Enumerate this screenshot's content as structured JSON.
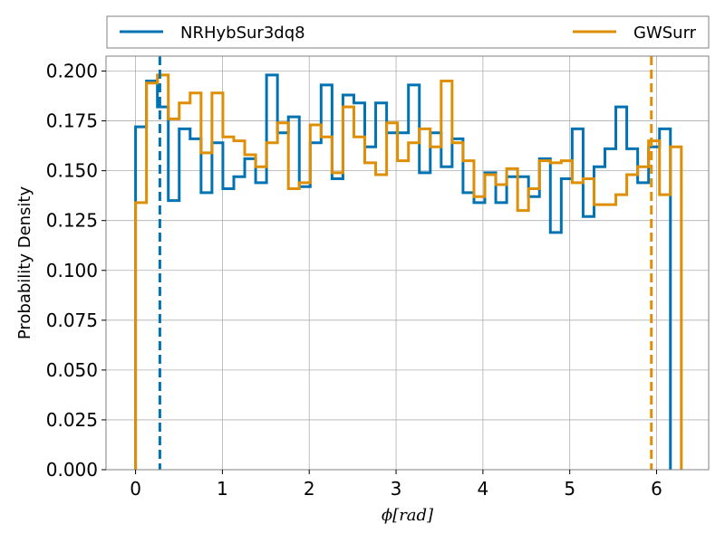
{
  "chart_data": {
    "type": "histogram",
    "xlabel": "ϕ[rad]",
    "ylabel": "Probability Density",
    "xlim": [
      -0.34,
      6.6
    ],
    "ylim": [
      0,
      0.2075
    ],
    "x_ticks": [
      0,
      1,
      2,
      3,
      4,
      5,
      6
    ],
    "y_ticks": [
      "0.000",
      "0.025",
      "0.050",
      "0.075",
      "0.100",
      "0.125",
      "0.150",
      "0.175",
      "0.200"
    ],
    "grid": true,
    "legend_placement": "top (above plot)",
    "bin_width": 0.1257,
    "series": [
      {
        "name": "NRHybSur3dq8",
        "color": "#0173b2",
        "values": [
          0.172,
          0.195,
          0.182,
          0.135,
          0.171,
          0.166,
          0.139,
          0.164,
          0.141,
          0.147,
          0.156,
          0.144,
          0.198,
          0.169,
          0.177,
          0.142,
          0.164,
          0.193,
          0.146,
          0.188,
          0.184,
          0.162,
          0.184,
          0.169,
          0.169,
          0.193,
          0.149,
          0.169,
          0.152,
          0.166,
          0.139,
          0.134,
          0.149,
          0.134,
          0.147,
          0.147,
          0.137,
          0.156,
          0.119,
          0.146,
          0.171,
          0.127,
          0.152,
          0.161,
          0.182,
          0.161,
          0.144,
          0.162,
          0.171
        ],
        "vline": 0.28
      },
      {
        "name": "GWSurr",
        "color": "#de8f05",
        "values": [
          0.134,
          0.194,
          0.198,
          0.176,
          0.184,
          0.189,
          0.159,
          0.189,
          0.167,
          0.165,
          0.158,
          0.152,
          0.164,
          0.174,
          0.141,
          0.144,
          0.173,
          0.167,
          0.149,
          0.182,
          0.167,
          0.154,
          0.148,
          0.174,
          0.155,
          0.164,
          0.171,
          0.162,
          0.195,
          0.164,
          0.155,
          0.137,
          0.148,
          0.143,
          0.151,
          0.13,
          0.141,
          0.155,
          0.154,
          0.155,
          0.144,
          0.146,
          0.133,
          0.133,
          0.138,
          0.148,
          0.152,
          0.165,
          0.138,
          0.162
        ],
        "vline": 5.94
      }
    ]
  }
}
